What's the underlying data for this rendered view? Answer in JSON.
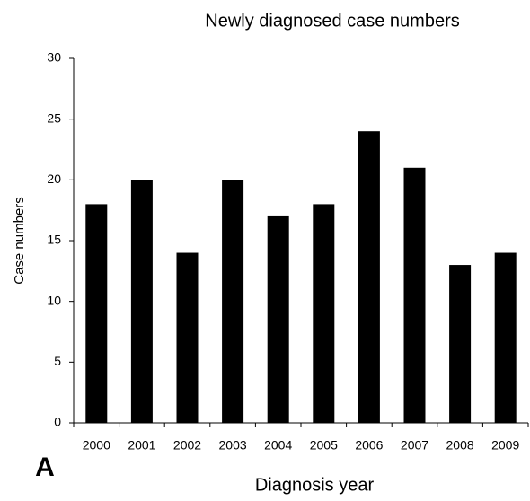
{
  "chart_data": {
    "type": "bar",
    "title": "Newly diagnosed case numbers",
    "panel_label": "A",
    "x_label": "Diagnosis year",
    "y_label": "Case numbers",
    "categories": [
      "2000",
      "2001",
      "2002",
      "2003",
      "2004",
      "2005",
      "2006",
      "2007",
      "2008",
      "2009"
    ],
    "values": [
      18,
      20,
      14,
      20,
      17,
      18,
      24,
      21,
      13,
      14
    ],
    "color": "#000000",
    "ylim": [
      0,
      30
    ],
    "yticks": [
      0,
      5,
      10,
      15,
      20,
      25,
      30
    ],
    "grid": false
  }
}
